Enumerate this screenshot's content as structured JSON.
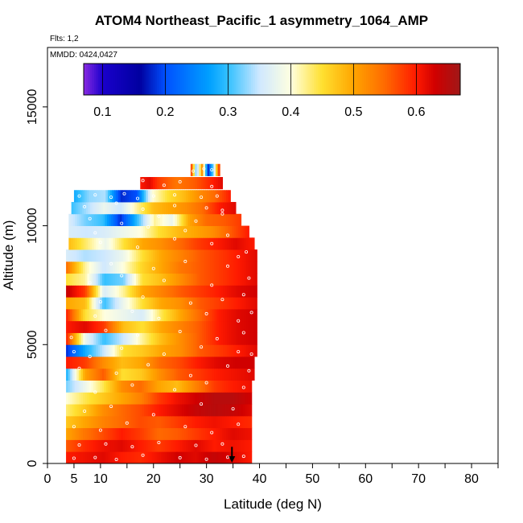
{
  "chart_data": {
    "type": "heatmap",
    "title": "ATOM4 Northeast_Pacific_1 asymmetry_1064_AMP",
    "flights_note": "Flts: 1,2",
    "date_note": "MMDD: 0424,0427",
    "xlabel": "Latitude (deg N)",
    "ylabel": "Altitude (m)",
    "xlim": [
      0,
      85
    ],
    "ylim": [
      0,
      17500
    ],
    "x_ticks": [
      0,
      5,
      10,
      20,
      30,
      40,
      50,
      60,
      70,
      80
    ],
    "x_tick_labels": [
      "0",
      "5",
      "10",
      "20",
      "30",
      "40",
      "50",
      "60",
      "70",
      "80"
    ],
    "x_minor_ticks": [
      15,
      25,
      35,
      45,
      55,
      65,
      75,
      85
    ],
    "y_ticks": [
      0,
      5000,
      10000,
      15000
    ],
    "y_tick_labels": [
      "0",
      "5000",
      "10000",
      "15000"
    ],
    "colorbar": {
      "range": [
        0.07,
        0.67
      ],
      "ticks": [
        0.1,
        0.2,
        0.3,
        0.4,
        0.5,
        0.6
      ],
      "tick_labels": [
        "0.1",
        "0.2",
        "0.3",
        "0.4",
        "0.5",
        "0.6"
      ],
      "stops": [
        {
          "v": 0.07,
          "color": "#8a2be2"
        },
        {
          "v": 0.1,
          "color": "#1a00cc"
        },
        {
          "v": 0.16,
          "color": "#0000a0"
        },
        {
          "v": 0.2,
          "color": "#0050ff"
        },
        {
          "v": 0.27,
          "color": "#00a0ff"
        },
        {
          "v": 0.3,
          "color": "#33c0ff"
        },
        {
          "v": 0.35,
          "color": "#cfe8ff"
        },
        {
          "v": 0.4,
          "color": "#ffffe0"
        },
        {
          "v": 0.45,
          "color": "#ffe030"
        },
        {
          "v": 0.5,
          "color": "#ffa500"
        },
        {
          "v": 0.55,
          "color": "#ff6a00"
        },
        {
          "v": 0.6,
          "color": "#ff1a00"
        },
        {
          "v": 0.63,
          "color": "#d00000"
        },
        {
          "v": 0.67,
          "color": "#a01818"
        }
      ]
    },
    "marker": {
      "lat": 34.8,
      "alt": 700
    },
    "bands": [
      {
        "alt": 250,
        "lat_min": 3.5,
        "lat_max": 38.5,
        "v": [
          0.6,
          0.61,
          0.62,
          0.6,
          0.59,
          0.61,
          0.63,
          0.62,
          0.64,
          0.62,
          0.6
        ]
      },
      {
        "alt": 750,
        "lat_min": 3.5,
        "lat_max": 38.5,
        "v": [
          0.56,
          0.59,
          0.61,
          0.62,
          0.6,
          0.58,
          0.6,
          0.62,
          0.6,
          0.61,
          0.6
        ]
      },
      {
        "alt": 1250,
        "lat_min": 3.5,
        "lat_max": 38.5,
        "v": [
          0.5,
          0.54,
          0.57,
          0.6,
          0.58,
          0.55,
          0.56,
          0.58,
          0.6,
          0.62,
          0.61
        ]
      },
      {
        "alt": 1750,
        "lat_min": 3.5,
        "lat_max": 38.5,
        "v": [
          0.47,
          0.5,
          0.53,
          0.55,
          0.57,
          0.56,
          0.58,
          0.6,
          0.61,
          0.6,
          0.59
        ]
      },
      {
        "alt": 2250,
        "lat_min": 3.5,
        "lat_max": 38.5,
        "v": [
          0.43,
          0.47,
          0.52,
          0.55,
          0.57,
          0.6,
          0.62,
          0.64,
          0.65,
          0.64,
          0.62
        ]
      },
      {
        "alt": 2750,
        "lat_min": 3.5,
        "lat_max": 38.5,
        "v": [
          0.4,
          0.44,
          0.47,
          0.5,
          0.53,
          0.58,
          0.61,
          0.63,
          0.65,
          0.65,
          0.63
        ]
      },
      {
        "alt": 3250,
        "lat_min": 3.5,
        "lat_max": 38.5,
        "v": [
          0.32,
          0.38,
          0.44,
          0.52,
          0.55,
          0.5,
          0.48,
          0.53,
          0.58,
          0.6,
          0.61
        ]
      },
      {
        "alt": 3750,
        "lat_min": 3.5,
        "lat_max": 39.0,
        "v": [
          0.28,
          0.5,
          0.56,
          0.45,
          0.47,
          0.52,
          0.56,
          0.58,
          0.6,
          0.61,
          0.62
        ]
      },
      {
        "alt": 4250,
        "lat_min": 3.5,
        "lat_max": 39.0,
        "v": [
          0.6,
          0.58,
          0.52,
          0.48,
          0.5,
          0.55,
          0.57,
          0.6,
          0.62,
          0.63,
          0.63
        ]
      },
      {
        "alt": 4750,
        "lat_min": 3.5,
        "lat_max": 39.5,
        "v": [
          0.18,
          0.28,
          0.35,
          0.45,
          0.47,
          0.5,
          0.52,
          0.56,
          0.58,
          0.6,
          0.62
        ]
      },
      {
        "alt": 5250,
        "lat_min": 3.5,
        "lat_max": 39.5,
        "v": [
          0.6,
          0.38,
          0.3,
          0.35,
          0.42,
          0.48,
          0.52,
          0.56,
          0.6,
          0.62,
          0.63
        ]
      },
      {
        "alt": 5750,
        "lat_min": 3.5,
        "lat_max": 39.5,
        "v": [
          0.6,
          0.62,
          0.58,
          0.48,
          0.45,
          0.5,
          0.53,
          0.56,
          0.6,
          0.62,
          0.63
        ]
      },
      {
        "alt": 6250,
        "lat_min": 3.5,
        "lat_max": 39.5,
        "v": [
          0.6,
          0.45,
          0.4,
          0.38,
          0.36,
          0.44,
          0.5,
          0.55,
          0.6,
          0.62,
          0.63
        ]
      },
      {
        "alt": 6750,
        "lat_min": 3.5,
        "lat_max": 39.5,
        "v": [
          0.5,
          0.48,
          0.3,
          0.38,
          0.45,
          0.5,
          0.52,
          0.56,
          0.58,
          0.6,
          0.62
        ]
      },
      {
        "alt": 7250,
        "lat_min": 3.5,
        "lat_max": 39.5,
        "v": [
          0.64,
          0.58,
          0.36,
          0.42,
          0.5,
          0.53,
          0.56,
          0.58,
          0.6,
          0.62,
          0.63
        ]
      },
      {
        "alt": 7750,
        "lat_min": 3.5,
        "lat_max": 39.5,
        "v": [
          0.45,
          0.42,
          0.3,
          0.32,
          0.45,
          0.48,
          0.52,
          0.56,
          0.58,
          0.6,
          0.62
        ]
      },
      {
        "alt": 8250,
        "lat_min": 3.5,
        "lat_max": 39.5,
        "v": [
          0.55,
          0.42,
          0.35,
          0.4,
          0.46,
          0.5,
          0.54,
          0.56,
          0.58,
          0.6,
          0.62
        ]
      },
      {
        "alt": 8750,
        "lat_min": 3.5,
        "lat_max": 39.5,
        "v": [
          0.36,
          0.34,
          0.35,
          0.38,
          0.45,
          0.5,
          0.53,
          0.56,
          0.58,
          0.6,
          0.62
        ]
      },
      {
        "alt": 9250,
        "lat_min": 4.0,
        "lat_max": 39.0,
        "v": [
          0.48,
          0.43,
          0.38,
          0.45,
          0.5,
          0.52,
          0.55,
          0.58,
          0.6,
          0.62,
          0.6
        ]
      },
      {
        "alt": 9750,
        "lat_min": 4.0,
        "lat_max": 38.0,
        "v": [
          0.36,
          0.35,
          0.36,
          0.38,
          0.4,
          0.45,
          0.48,
          0.5,
          0.52,
          0.56,
          0.6
        ]
      },
      {
        "alt": 10250,
        "lat_min": 4.0,
        "lat_max": 36.5,
        "v": [
          0.36,
          0.32,
          0.3,
          0.18,
          0.3,
          0.42,
          0.38,
          0.5,
          0.55,
          0.56,
          0.58
        ]
      },
      {
        "alt": 10750,
        "lat_min": 4.5,
        "lat_max": 35.5,
        "v": [
          0.3,
          0.34,
          0.38,
          0.35,
          0.42,
          0.48,
          0.5,
          0.52,
          0.55,
          0.6,
          0.62
        ]
      },
      {
        "alt": 11250,
        "lat_min": 5.0,
        "lat_max": 34.5,
        "v": [
          0.28,
          0.33,
          0.34,
          0.18,
          0.2,
          0.4,
          0.45,
          0.48,
          0.52,
          0.55,
          0.6
        ]
      },
      {
        "alt": 11800,
        "lat_min": 17.5,
        "lat_max": 33.0,
        "v": [
          0.6,
          0.62,
          0.58,
          0.56,
          0.54,
          0.55,
          0.56,
          0.58,
          0.6,
          0.62
        ]
      },
      {
        "alt": 12350,
        "lat_min": 27.0,
        "lat_max": 32.5,
        "v": [
          0.62,
          0.3,
          0.52,
          0.18,
          0.34,
          0.62
        ]
      }
    ],
    "samples": [
      [
        5,
        220
      ],
      [
        9,
        250
      ],
      [
        13,
        170
      ],
      [
        18,
        350
      ],
      [
        25,
        240
      ],
      [
        30,
        180
      ],
      [
        34,
        260
      ],
      [
        37,
        300
      ],
      [
        6,
        780
      ],
      [
        11,
        820
      ],
      [
        16,
        700
      ],
      [
        21,
        880
      ],
      [
        28,
        760
      ],
      [
        33,
        820
      ],
      [
        5,
        1550
      ],
      [
        10,
        1400
      ],
      [
        15,
        1700
      ],
      [
        26,
        1550
      ],
      [
        31,
        1300
      ],
      [
        36,
        1650
      ],
      [
        7,
        2200
      ],
      [
        12,
        2400
      ],
      [
        20,
        2050
      ],
      [
        29,
        2500
      ],
      [
        35,
        2300
      ],
      [
        9,
        3000
      ],
      [
        16,
        3300
      ],
      [
        24,
        3100
      ],
      [
        30,
        3400
      ],
      [
        37,
        3200
      ],
      [
        6,
        4000
      ],
      [
        13,
        3800
      ],
      [
        19,
        4150
      ],
      [
        27,
        3700
      ],
      [
        34,
        4100
      ],
      [
        38,
        3900
      ],
      [
        5,
        4700
      ],
      [
        8,
        4500
      ],
      [
        14,
        4850
      ],
      [
        22,
        4600
      ],
      [
        29,
        4900
      ],
      [
        36,
        4700
      ],
      [
        38.5,
        4600
      ],
      [
        4.5,
        5300
      ],
      [
        11,
        5600
      ],
      [
        17,
        5400
      ],
      [
        25,
        5550
      ],
      [
        32,
        5250
      ],
      [
        37,
        5500
      ],
      [
        9,
        6200
      ],
      [
        16,
        6400
      ],
      [
        21,
        6100
      ],
      [
        30,
        6300
      ],
      [
        36,
        6000
      ],
      [
        38.5,
        6350
      ],
      [
        10,
        6800
      ],
      [
        18,
        7000
      ],
      [
        27,
        6750
      ],
      [
        33,
        6900
      ],
      [
        37,
        7100
      ],
      [
        8,
        7600
      ],
      [
        14,
        7900
      ],
      [
        22,
        7700
      ],
      [
        31,
        7500
      ],
      [
        38,
        7800
      ],
      [
        12,
        8400
      ],
      [
        20,
        8200
      ],
      [
        26,
        8500
      ],
      [
        34,
        8300
      ],
      [
        36,
        8700
      ],
      [
        37.5,
        8900
      ],
      [
        10,
        9300
      ],
      [
        17,
        9100
      ],
      [
        24,
        9450
      ],
      [
        31,
        9250
      ],
      [
        9,
        9700
      ],
      [
        19,
        9950
      ],
      [
        26,
        9800
      ],
      [
        34,
        9600
      ],
      [
        8,
        10300
      ],
      [
        14,
        10100
      ],
      [
        21,
        10400
      ],
      [
        28,
        10200
      ],
      [
        33,
        10500
      ],
      [
        7,
        10800
      ],
      [
        13,
        10950
      ],
      [
        18,
        10700
      ],
      [
        24,
        10850
      ],
      [
        30,
        10750
      ],
      [
        33,
        10650
      ],
      [
        6,
        11250
      ],
      [
        9,
        11300
      ],
      [
        12,
        11200
      ],
      [
        14.5,
        11350
      ],
      [
        17,
        11150
      ],
      [
        20,
        11250
      ],
      [
        24,
        11300
      ],
      [
        29,
        11200
      ],
      [
        32,
        11250
      ],
      [
        18,
        11900
      ],
      [
        22,
        11700
      ],
      [
        25,
        11850
      ],
      [
        31,
        11650
      ],
      [
        27.5,
        12300
      ],
      [
        29.5,
        12400
      ],
      [
        31,
        12350
      ]
    ]
  }
}
